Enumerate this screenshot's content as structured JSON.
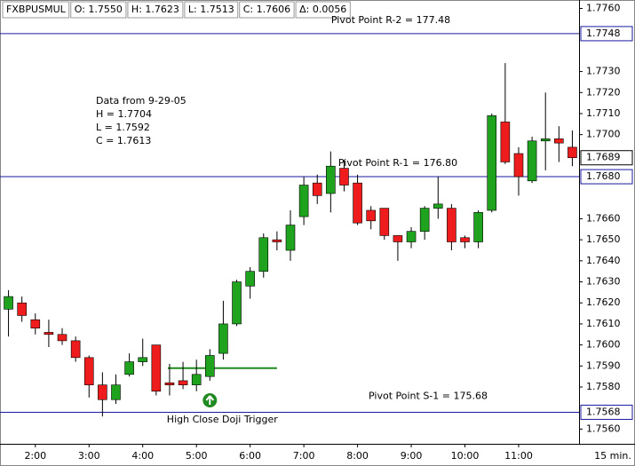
{
  "chart_data": {
    "type": "candlestick",
    "header": [
      "FXBPUSMUL",
      "O: 1.7550",
      "H: 1.7623",
      "L: 1.7513",
      "C: 1.7606",
      "Δ: 0.0056"
    ],
    "categories": [
      null,
      null,
      "2:00",
      null,
      null,
      null,
      "3:00",
      null,
      null,
      null,
      "4:00",
      null,
      null,
      null,
      "5:00",
      null,
      null,
      null,
      "6:00",
      null,
      null,
      null,
      "7:00",
      null,
      null,
      null,
      "8:00",
      null,
      null,
      null,
      "9:00",
      null,
      null,
      null,
      "10:00",
      null,
      null,
      null,
      "11:00",
      null,
      null,
      null,
      null
    ],
    "x_unit_label": "15 min.",
    "open": [
      1.7617,
      1.762,
      1.7612,
      1.7606,
      1.7605,
      1.7602,
      1.7594,
      1.7581,
      1.7574,
      1.7586,
      1.7592,
      1.76,
      1.7582,
      1.7583,
      1.7581,
      1.7585,
      1.7596,
      1.761,
      1.7628,
      1.7635,
      1.765,
      1.7645,
      1.7661,
      1.7677,
      1.7672,
      1.7684,
      1.7677,
      1.7664,
      1.7665,
      1.7652,
      1.7649,
      1.7654,
      1.7665,
      1.7665,
      1.7651,
      1.7649,
      1.7664,
      1.7706,
      1.7691,
      1.7678,
      1.7697,
      1.7698,
      1.7694
    ],
    "high": [
      1.7626,
      1.7623,
      1.7615,
      1.7612,
      1.7608,
      1.7604,
      1.7595,
      1.7587,
      1.7586,
      1.7596,
      1.7603,
      1.76,
      1.7591,
      1.7592,
      1.7593,
      1.7598,
      1.7621,
      1.7631,
      1.7637,
      1.7653,
      1.7654,
      1.7664,
      1.768,
      1.7681,
      1.7692,
      1.7688,
      1.7681,
      1.7666,
      1.7665,
      1.7652,
      1.7656,
      1.7666,
      1.768,
      1.7667,
      1.7652,
      1.7664,
      1.771,
      1.7734,
      1.7694,
      1.7699,
      1.772,
      1.7704,
      1.7702
    ],
    "low": [
      1.7604,
      1.7611,
      1.7605,
      1.7599,
      1.76,
      1.7592,
      1.7575,
      1.7566,
      1.7572,
      1.7585,
      1.759,
      1.7576,
      1.7576,
      1.7579,
      1.7578,
      1.7583,
      1.7593,
      1.7609,
      1.7622,
      1.7632,
      1.7645,
      1.764,
      1.7657,
      1.7667,
      1.7663,
      1.7673,
      1.7657,
      1.7655,
      1.765,
      1.764,
      1.7646,
      1.765,
      1.766,
      1.7645,
      1.7646,
      1.7646,
      1.7663,
      1.7686,
      1.7671,
      1.7677,
      1.7683,
      1.7687,
      1.7685
    ],
    "close": [
      1.7623,
      1.7614,
      1.7608,
      1.7605,
      1.7602,
      1.7594,
      1.7581,
      1.7574,
      1.7581,
      1.7592,
      1.7594,
      1.7578,
      1.7581,
      1.7581,
      1.7586,
      1.7595,
      1.761,
      1.763,
      1.7635,
      1.7651,
      1.7649,
      1.7657,
      1.7676,
      1.7671,
      1.7685,
      1.7676,
      1.7658,
      1.7659,
      1.7652,
      1.7649,
      1.7654,
      1.7665,
      1.7667,
      1.7649,
      1.7649,
      1.7663,
      1.7709,
      1.7687,
      1.768,
      1.7697,
      1.7698,
      1.7696,
      1.7689
    ],
    "up_color": "#1fa31f",
    "down_color": "#ee1c1c",
    "ylim": [
      1.7553,
      1.7764
    ],
    "yticks": [
      {
        "value": 1.756,
        "label": "1.7560"
      },
      {
        "value": 1.758,
        "label": "1.7580"
      },
      {
        "value": 1.759,
        "label": "1.7590"
      },
      {
        "value": 1.76,
        "label": "1.7600"
      },
      {
        "value": 1.761,
        "label": "1.7610"
      },
      {
        "value": 1.762,
        "label": "1.7620"
      },
      {
        "value": 1.763,
        "label": "1.7630"
      },
      {
        "value": 1.764,
        "label": "1.7640"
      },
      {
        "value": 1.765,
        "label": "1.7650"
      },
      {
        "value": 1.766,
        "label": "1.7660"
      },
      {
        "value": 1.77,
        "label": "1.7700"
      },
      {
        "value": 1.771,
        "label": "1.7710"
      },
      {
        "value": 1.772,
        "label": "1.7720"
      },
      {
        "value": 1.773,
        "label": "1.7730"
      },
      {
        "value": 1.776,
        "label": "1.7760"
      }
    ],
    "last_price": {
      "value": 1.7689,
      "label": "1.7689"
    },
    "levels": [
      {
        "value": 1.7748,
        "label": "1.7748",
        "annotation": "Pivot Point R-2 = 177.48"
      },
      {
        "value": 1.768,
        "label": "1.7680",
        "annotation": "Pivot Point R-1 = 176.80"
      },
      {
        "value": 1.7568,
        "label": "1.7568",
        "annotation": "Pivot Point S-1 = 175.68"
      }
    ],
    "level_color": "#1a1aa0",
    "trigger": {
      "value": 1.7589,
      "label": "High Close Doji Trigger",
      "color": "#1f8a1f"
    },
    "note": [
      "Data from 9-29-05",
      "H = 1.7704",
      "L = 1.7592",
      "C = 1.7613"
    ]
  }
}
